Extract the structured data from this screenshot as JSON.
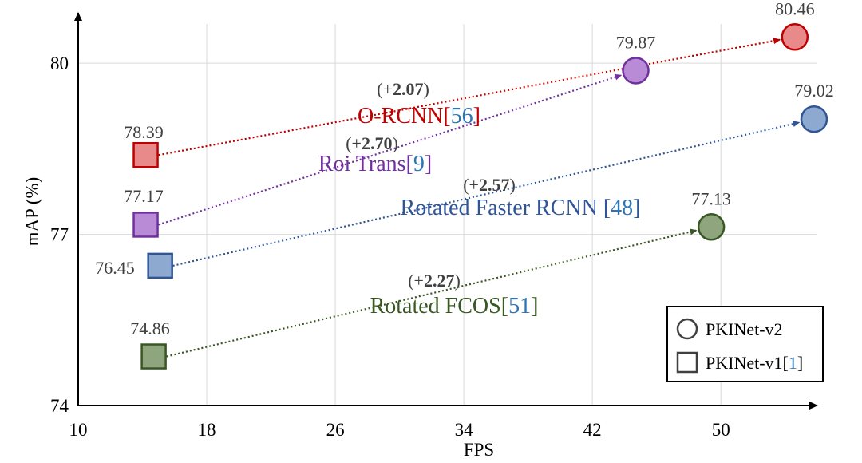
{
  "chart_data": {
    "type": "scatter",
    "xlabel": "FPS",
    "ylabel": "mAP (%)",
    "xlim": [
      10,
      56
    ],
    "ylim": [
      74,
      80.8
    ],
    "x_ticks": [
      "10",
      "18",
      "26",
      "34",
      "42",
      "50"
    ],
    "y_ticks": [
      "74",
      "77",
      "80"
    ],
    "grid": true,
    "legend_placement": "bottom-right",
    "legend": [
      {
        "shape": "circle",
        "name": "PKINet-v2",
        "ref": ""
      },
      {
        "shape": "square",
        "name": "PKINet-v1",
        "ref": "1"
      }
    ],
    "pairs": [
      {
        "detector": "O-RCNN",
        "ref": "56",
        "color": "#c00000",
        "fill": "#e88a8a",
        "v1": {
          "x": 14.2,
          "y": 78.39,
          "label": "78.39"
        },
        "v2": {
          "x": 54.6,
          "y": 80.46,
          "label": "80.46"
        },
        "gain_prefix": "(+",
        "gain": "2.07",
        "gain_suffix": ")"
      },
      {
        "detector": "Roi Trans",
        "ref": "9",
        "color": "#7030a0",
        "fill": "#b98ad6",
        "v1": {
          "x": 14.2,
          "y": 77.17,
          "label": "77.17"
        },
        "v2": {
          "x": 44.7,
          "y": 79.87,
          "label": "79.87"
        },
        "gain_prefix": "(+",
        "gain": "2.70",
        "gain_suffix": ")"
      },
      {
        "detector": "Rotated Faster RCNN ",
        "ref": "48",
        "color": "#2f5597",
        "fill": "#8ea9d0",
        "v1": {
          "x": 15.1,
          "y": 76.45,
          "label": "76.45"
        },
        "v2": {
          "x": 55.8,
          "y": 79.02,
          "label": "79.02"
        },
        "gain_prefix": "(+",
        "gain": "2.57",
        "gain_suffix": ")"
      },
      {
        "detector": "Rotated FCOS",
        "ref": "51",
        "color": "#385723",
        "fill": "#8fa57e",
        "v1": {
          "x": 14.7,
          "y": 74.86,
          "label": "74.86"
        },
        "v2": {
          "x": 49.4,
          "y": 77.13,
          "label": "77.13"
        },
        "gain_prefix": "(+",
        "gain": "2.27",
        "gain_suffix": ")"
      }
    ],
    "colors": {
      "reference": "#2e75b6",
      "text": "#404040",
      "grid": "#d9d9d9",
      "axis": "#000000"
    }
  }
}
